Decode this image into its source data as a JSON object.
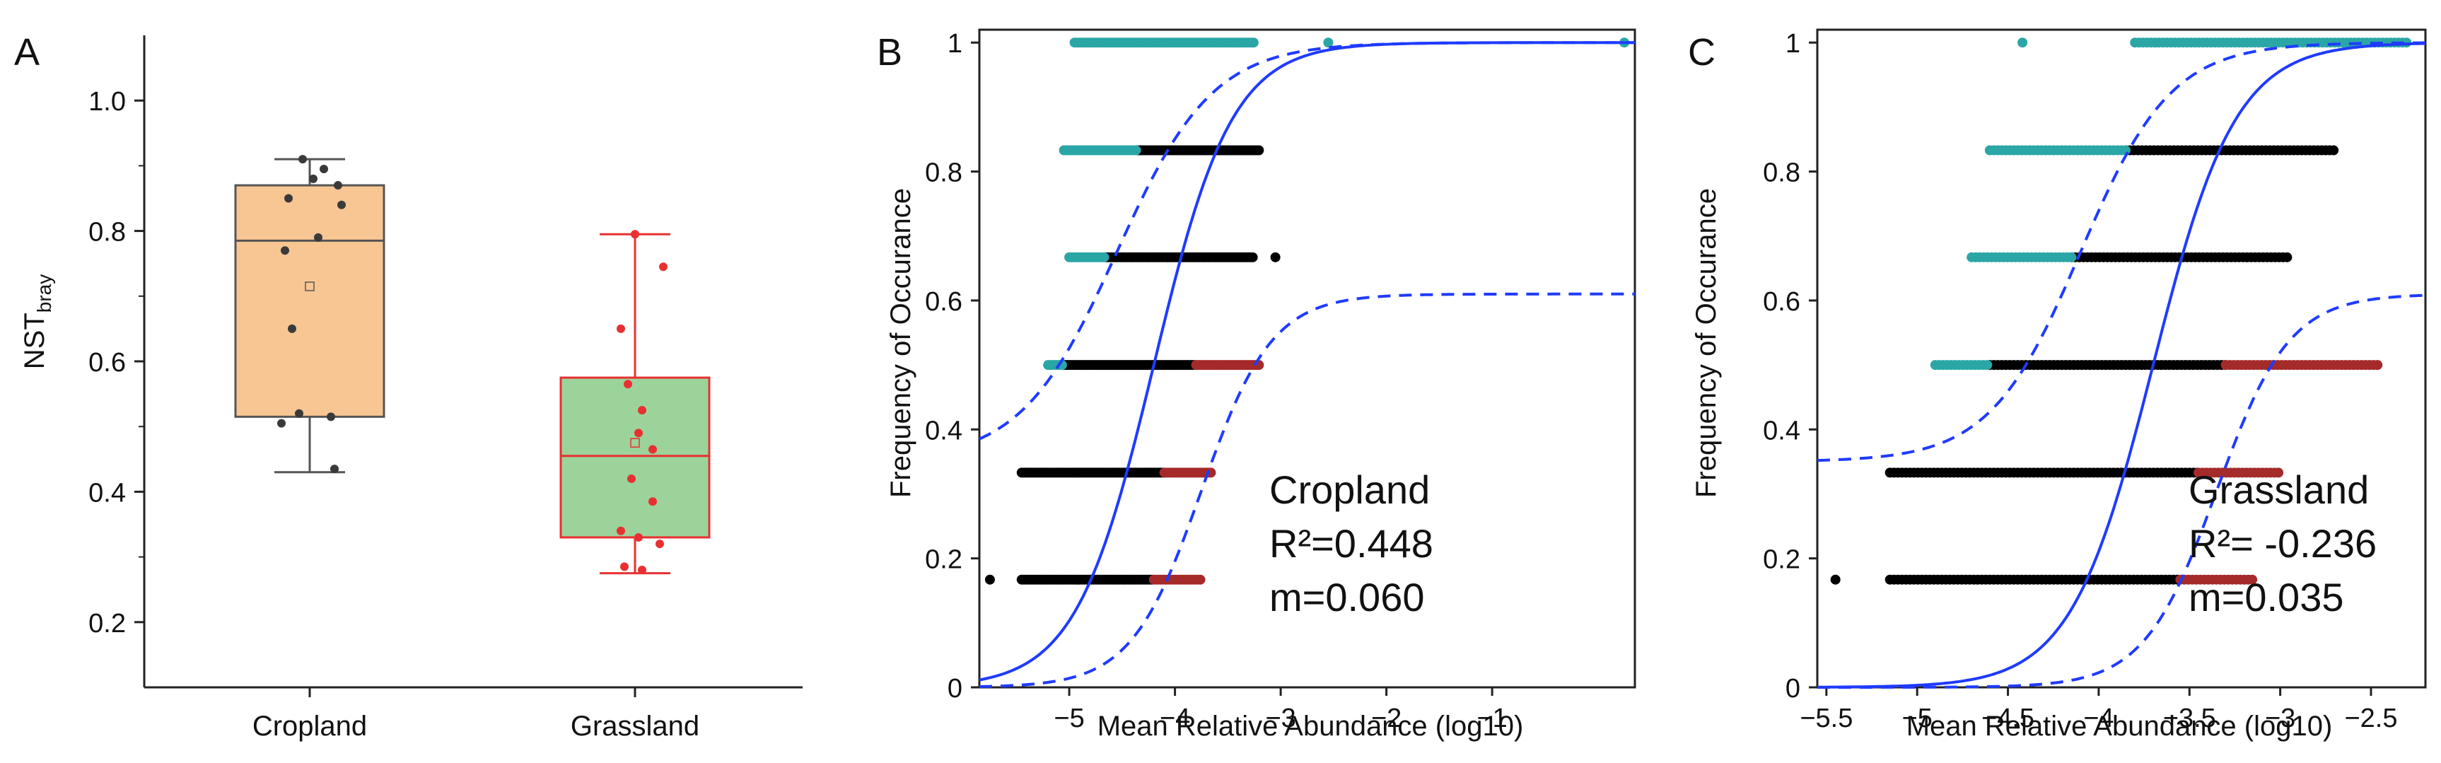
{
  "colors": {
    "cropland_fill": "#f8c693",
    "cropland_edge": "#555555",
    "grassland_fill": "#9cd39b",
    "grassland_edge": "#e83030",
    "above": "#2aa6a6",
    "neutral": "#000000",
    "below": "#a52a2a",
    "fit": "#1f3bff"
  },
  "chart_data": [
    {
      "type": "box",
      "panel_letter": "A",
      "ylabel_main": "NST",
      "ylabel_sub": "bray",
      "ylim": [
        0.1,
        1.1
      ],
      "yticks": [
        0.2,
        0.4,
        0.6,
        0.8,
        1.0
      ],
      "ytick_labels": [
        "0.2",
        "0.4",
        "0.6",
        "0.8",
        "1.0"
      ],
      "categories": [
        "Cropland",
        "Grassland"
      ],
      "boxes": [
        {
          "name": "Cropland",
          "min": 0.43,
          "q1": 0.515,
          "median": 0.785,
          "q3": 0.87,
          "max": 0.91,
          "mean": 0.715,
          "points": [
            0.91,
            0.895,
            0.88,
            0.87,
            0.85,
            0.84,
            0.79,
            0.77,
            0.65,
            0.52,
            0.515,
            0.505,
            0.435
          ]
        },
        {
          "name": "Grassland",
          "min": 0.275,
          "q1": 0.33,
          "median": 0.455,
          "q3": 0.575,
          "max": 0.795,
          "mean": 0.475,
          "points": [
            0.795,
            0.745,
            0.65,
            0.565,
            0.525,
            0.49,
            0.465,
            0.42,
            0.385,
            0.34,
            0.33,
            0.32,
            0.285,
            0.28
          ]
        }
      ]
    },
    {
      "type": "scatter",
      "panel_letter": "B",
      "xlabel": "Mean Relative Abundance (log10)",
      "ylabel": "Frequency of Occurance",
      "xlim": [
        -5.85,
        0.35
      ],
      "ylim": [
        0,
        1.02
      ],
      "xticks": [
        -5,
        -4,
        -3,
        -2,
        -1
      ],
      "xtick_labels": [
        "−5",
        "−4",
        "−3",
        "−2",
        "−1"
      ],
      "yticks": [
        0,
        0.2,
        0.4,
        0.6,
        0.8,
        1
      ],
      "ytick_labels": [
        "0",
        "0.2",
        "0.4",
        "0.6",
        "0.8",
        "1"
      ],
      "annotation": [
        "Cropland",
        "R²=0.448",
        "m=0.060"
      ],
      "rows": [
        {
          "y": 1.0,
          "above": [
            -4.95,
            -3.25
          ],
          "neutral": null,
          "below": null,
          "extra_above": [
            -2.55,
            0.25
          ]
        },
        {
          "y": 0.833,
          "above": [
            -5.05,
            -4.35
          ],
          "neutral": [
            -4.35,
            -3.2
          ],
          "below": null
        },
        {
          "y": 0.667,
          "above": [
            -5.0,
            -4.65
          ],
          "neutral": [
            -4.65,
            -3.25
          ],
          "below": null,
          "extra_neutral": [
            -3.05
          ]
        },
        {
          "y": 0.5,
          "above": [
            -5.2,
            -5.05
          ],
          "neutral": [
            -5.05,
            -3.8
          ],
          "below": [
            -3.8,
            -3.2
          ]
        },
        {
          "y": 0.333,
          "above": null,
          "neutral": [
            -5.45,
            -4.1
          ],
          "below": [
            -4.1,
            -3.65
          ]
        },
        {
          "y": 0.167,
          "above": null,
          "neutral": [
            -5.45,
            -4.2
          ],
          "below": [
            -4.2,
            -3.75
          ],
          "extra_neutral": [
            -5.75
          ]
        }
      ],
      "fit": {
        "x0": -4.2,
        "k": 2.7,
        "lower_x0": -3.75,
        "lower_k": 3.0,
        "lower_max": 0.61,
        "upper_x0": -4.55,
        "upper_k": 2.2,
        "upper_min": 0.35
      }
    },
    {
      "type": "scatter",
      "panel_letter": "C",
      "xlabel": "Mean Relative Abundance (log10)",
      "ylabel": "Frequency of Occurance",
      "xlim": [
        -5.55,
        -2.2
      ],
      "ylim": [
        0,
        1.02
      ],
      "xticks": [
        -5.5,
        -5,
        -4.5,
        -4,
        -3.5,
        -3,
        -2.5
      ],
      "xtick_labels": [
        "−5.5",
        "−5",
        "−4.5",
        "−4",
        "−3.5",
        "−3",
        "−2.5"
      ],
      "yticks": [
        0,
        0.2,
        0.4,
        0.6,
        0.8,
        1
      ],
      "ytick_labels": [
        "0",
        "0.2",
        "0.4",
        "0.6",
        "0.8",
        "1"
      ],
      "annotation": [
        "Grassland",
        "R²= -0.236",
        "m=0.035"
      ],
      "rows": [
        {
          "y": 1.0,
          "above": [
            -3.8,
            -2.3
          ],
          "neutral": null,
          "below": null,
          "extra_above": [
            -4.42
          ]
        },
        {
          "y": 0.833,
          "above": [
            -4.6,
            -3.85
          ],
          "neutral": [
            -3.85,
            -2.7
          ],
          "below": null
        },
        {
          "y": 0.667,
          "above": [
            -4.7,
            -4.15
          ],
          "neutral": [
            -4.15,
            -2.95
          ],
          "below": null
        },
        {
          "y": 0.5,
          "above": [
            -4.9,
            -4.6
          ],
          "neutral": [
            -4.6,
            -3.3
          ],
          "below": [
            -3.3,
            -2.45
          ]
        },
        {
          "y": 0.333,
          "above": null,
          "neutral": [
            -5.15,
            -3.45
          ],
          "below": [
            -3.45,
            -3.0
          ]
        },
        {
          "y": 0.167,
          "above": null,
          "neutral": [
            -5.15,
            -3.55
          ],
          "below": [
            -3.55,
            -3.15
          ],
          "extra_neutral": [
            -5.45
          ]
        }
      ],
      "fit": {
        "x0": -3.7,
        "k": 4.4,
        "lower_x0": -3.35,
        "lower_k": 5.0,
        "lower_max": 0.61,
        "upper_x0": -4.1,
        "upper_k": 4.0,
        "upper_min": 0.35
      }
    }
  ]
}
